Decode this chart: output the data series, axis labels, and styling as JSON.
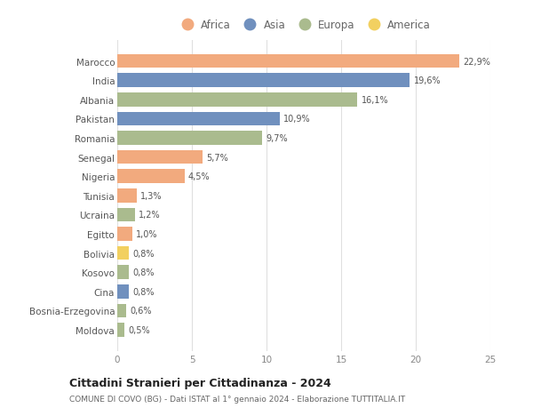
{
  "categories": [
    "Marocco",
    "India",
    "Albania",
    "Pakistan",
    "Romania",
    "Senegal",
    "Nigeria",
    "Tunisia",
    "Ucraina",
    "Egitto",
    "Bolivia",
    "Kosovo",
    "Cina",
    "Bosnia-Erzegovina",
    "Moldova"
  ],
  "values": [
    22.9,
    19.6,
    16.1,
    10.9,
    9.7,
    5.7,
    4.5,
    1.3,
    1.2,
    1.0,
    0.8,
    0.8,
    0.8,
    0.6,
    0.5
  ],
  "labels": [
    "22,9%",
    "19,6%",
    "16,1%",
    "10,9%",
    "9,7%",
    "5,7%",
    "4,5%",
    "1,3%",
    "1,2%",
    "1,0%",
    "0,8%",
    "0,8%",
    "0,8%",
    "0,6%",
    "0,5%"
  ],
  "regions": [
    "Africa",
    "Asia",
    "Europa",
    "Asia",
    "Europa",
    "Africa",
    "Africa",
    "Africa",
    "Europa",
    "Africa",
    "America",
    "Europa",
    "Asia",
    "Europa",
    "Europa"
  ],
  "colors": {
    "Africa": "#F2AA7E",
    "Asia": "#7090BE",
    "Europa": "#AABB8E",
    "America": "#F2D060"
  },
  "title": "Cittadini Stranieri per Cittadinanza - 2024",
  "subtitle": "COMUNE DI COVO (BG) - Dati ISTAT al 1° gennaio 2024 - Elaborazione TUTTITALIA.IT",
  "xlim": [
    0,
    25
  ],
  "xticks": [
    0,
    5,
    10,
    15,
    20,
    25
  ],
  "background_color": "#ffffff",
  "bar_height": 0.72
}
